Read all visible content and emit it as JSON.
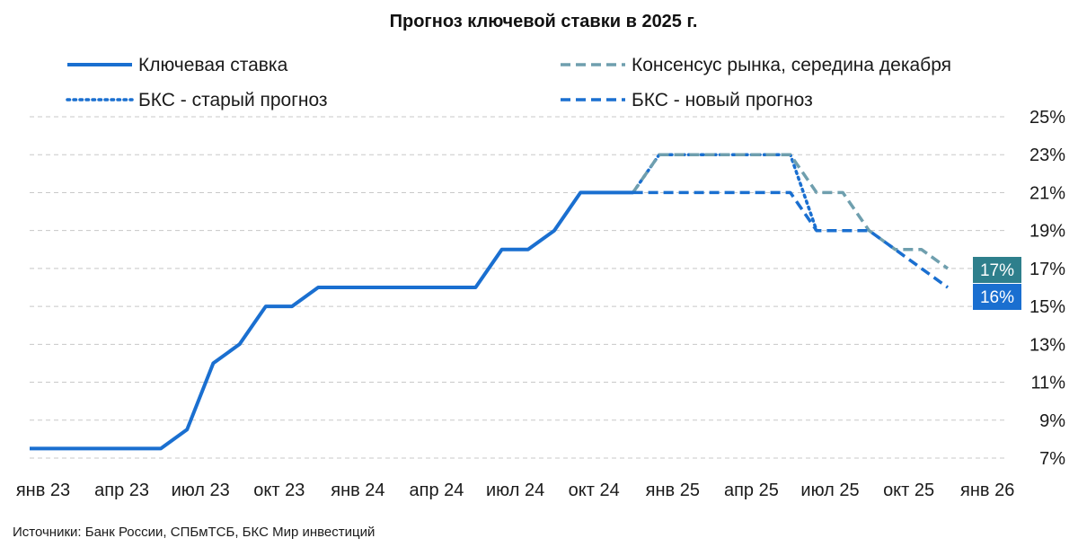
{
  "chart_data": {
    "type": "line",
    "title": "Прогноз ключевой ставки в 2025 г.",
    "source": "Источники: Банк России, СПБмТСБ, БКС Мир инвестиций",
    "y_unit": "%",
    "ylim": [
      7,
      25
    ],
    "y_ticks": [
      "25%",
      "23%",
      "21%",
      "19%",
      "17%",
      "15%",
      "13%",
      "11%",
      "9%",
      "7%"
    ],
    "x_tick_labels": [
      "янв 23",
      "апр 23",
      "июл 23",
      "окт 23",
      "янв 24",
      "апр 24",
      "июл 24",
      "окт 24",
      "янв 25",
      "апр 25",
      "июл 25",
      "окт 25",
      "янв 26"
    ],
    "grid": true,
    "legend_position": "top",
    "series": [
      {
        "name": "Ключевая ставка",
        "style": "solid",
        "color": "#1a6fd0",
        "points": [
          [
            "2023-01",
            7.5
          ],
          [
            "2023-02",
            7.5
          ],
          [
            "2023-03",
            7.5
          ],
          [
            "2023-04",
            7.5
          ],
          [
            "2023-05",
            7.5
          ],
          [
            "2023-06",
            7.5
          ],
          [
            "2023-07",
            8.5
          ],
          [
            "2023-08",
            12
          ],
          [
            "2023-09",
            13
          ],
          [
            "2023-10",
            15
          ],
          [
            "2023-11",
            15
          ],
          [
            "2023-12",
            16
          ],
          [
            "2024-01",
            16
          ],
          [
            "2024-02",
            16
          ],
          [
            "2024-03",
            16
          ],
          [
            "2024-04",
            16
          ],
          [
            "2024-05",
            16
          ],
          [
            "2024-06",
            16
          ],
          [
            "2024-07",
            18
          ],
          [
            "2024-08",
            18
          ],
          [
            "2024-09",
            19
          ],
          [
            "2024-10",
            21
          ],
          [
            "2024-11",
            21
          ],
          [
            "2024-12",
            21
          ]
        ]
      },
      {
        "name": "Консенсус рынка, середина декабря",
        "style": "dashed",
        "color": "#6f9fae",
        "points": [
          [
            "2024-12",
            21
          ],
          [
            "2025-01",
            23
          ],
          [
            "2025-02",
            23
          ],
          [
            "2025-03",
            23
          ],
          [
            "2025-04",
            23
          ],
          [
            "2025-05",
            23
          ],
          [
            "2025-06",
            23
          ],
          [
            "2025-07",
            21
          ],
          [
            "2025-08",
            21
          ],
          [
            "2025-09",
            19
          ],
          [
            "2025-10",
            18
          ],
          [
            "2025-11",
            18
          ],
          [
            "2025-12",
            17
          ]
        ]
      },
      {
        "name": "БКС - старый прогноз",
        "style": "dotted",
        "color": "#1a6fd0",
        "points": [
          [
            "2024-12",
            21
          ],
          [
            "2025-01",
            23
          ],
          [
            "2025-02",
            23
          ],
          [
            "2025-03",
            23
          ],
          [
            "2025-04",
            23
          ],
          [
            "2025-05",
            23
          ],
          [
            "2025-06",
            23
          ],
          [
            "2025-07",
            19
          ]
        ]
      },
      {
        "name": "БКС - новый прогноз",
        "style": "dashed",
        "color": "#1a6fd0",
        "points": [
          [
            "2024-12",
            21
          ],
          [
            "2025-01",
            21
          ],
          [
            "2025-02",
            21
          ],
          [
            "2025-03",
            21
          ],
          [
            "2025-04",
            21
          ],
          [
            "2025-05",
            21
          ],
          [
            "2025-06",
            21
          ],
          [
            "2025-07",
            19
          ],
          [
            "2025-08",
            19
          ],
          [
            "2025-09",
            19
          ],
          [
            "2025-10",
            18
          ],
          [
            "2025-11",
            17
          ],
          [
            "2025-12",
            16
          ]
        ]
      }
    ],
    "end_labels": [
      {
        "text": "17%",
        "value": 17,
        "color": "#2e7f8c"
      },
      {
        "text": "16%",
        "value": 16,
        "color": "#1a6fd0"
      }
    ]
  }
}
